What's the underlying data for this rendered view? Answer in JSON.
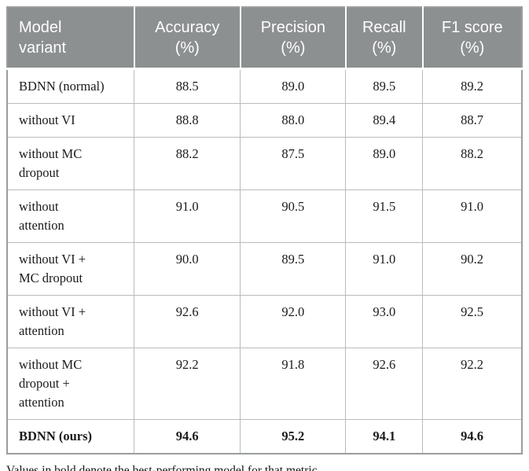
{
  "colors": {
    "header_bg": "#8c9091",
    "header_text": "#ffffff",
    "border_outer": "#9a9d9d",
    "border_inner": "#b9bcbb",
    "body_text": "#1b1b1b",
    "background": "#ffffff"
  },
  "table": {
    "headers": [
      "Model\nvariant",
      "Accuracy\n(%)",
      "Precision\n(%)",
      "Recall\n(%)",
      "F1 score\n(%)"
    ],
    "rows": [
      {
        "cells": [
          "BDNN (normal)",
          "88.5",
          "89.0",
          "89.5",
          "89.2"
        ],
        "bold": false
      },
      {
        "cells": [
          "without VI",
          "88.8",
          "88.0",
          "89.4",
          "88.7"
        ],
        "bold": false
      },
      {
        "cells": [
          "without MC\ndropout",
          "88.2",
          "87.5",
          "89.0",
          "88.2"
        ],
        "bold": false
      },
      {
        "cells": [
          "without\nattention",
          "91.0",
          "90.5",
          "91.5",
          "91.0"
        ],
        "bold": false
      },
      {
        "cells": [
          "without VI +\nMC dropout",
          "90.0",
          "89.5",
          "91.0",
          "90.2"
        ],
        "bold": false
      },
      {
        "cells": [
          "without VI +\nattention",
          "92.6",
          "92.0",
          "93.0",
          "92.5"
        ],
        "bold": false
      },
      {
        "cells": [
          "without MC\ndropout +\nattention",
          "92.2",
          "91.8",
          "92.6",
          "92.2"
        ],
        "bold": false
      },
      {
        "cells": [
          "BDNN (ours)",
          "94.6",
          "95.2",
          "94.1",
          "94.6"
        ],
        "bold": true
      }
    ],
    "caption": "Values in bold denote the best-performing model for that metric."
  }
}
